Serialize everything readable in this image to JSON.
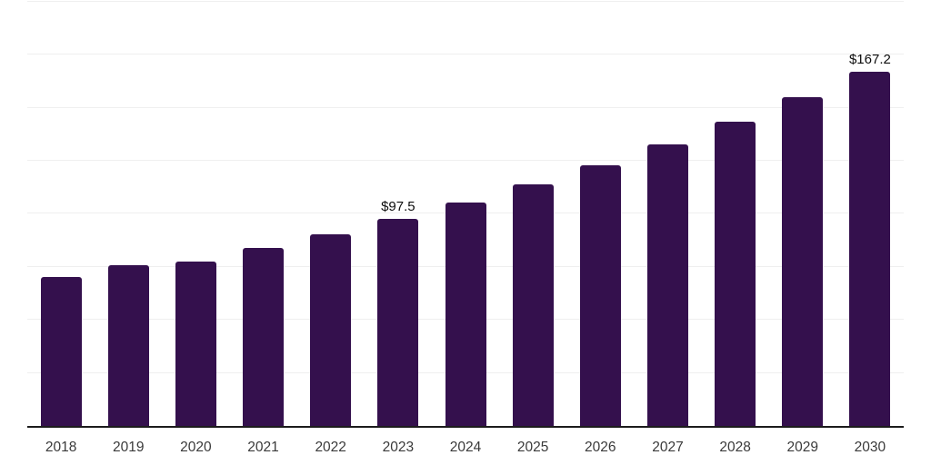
{
  "chart_data": {
    "type": "bar",
    "title": "",
    "xlabel": "",
    "ylabel": "",
    "categories": [
      "2018",
      "2019",
      "2020",
      "2021",
      "2022",
      "2023",
      "2024",
      "2025",
      "2026",
      "2027",
      "2028",
      "2029",
      "2030"
    ],
    "values": [
      70.3,
      75.8,
      77.6,
      84.0,
      90.4,
      97.5,
      105.4,
      113.9,
      122.9,
      132.8,
      143.5,
      155.0,
      167.2
    ],
    "value_labels": [
      {
        "index": 5,
        "text": "$97.5"
      },
      {
        "index": 12,
        "text": "$167.2"
      }
    ],
    "ylim": [
      0,
      200
    ],
    "gridline_step": 25,
    "grid": true,
    "legend": "none",
    "y_tick_labels_visible": false,
    "colors": {
      "bar": "#34104d",
      "gridline": "#efefef",
      "axis_line": "#1c1c1c",
      "tick_label": "#3a3a3a",
      "value_label": "#0d0d0d",
      "background": "#ffffff"
    }
  }
}
